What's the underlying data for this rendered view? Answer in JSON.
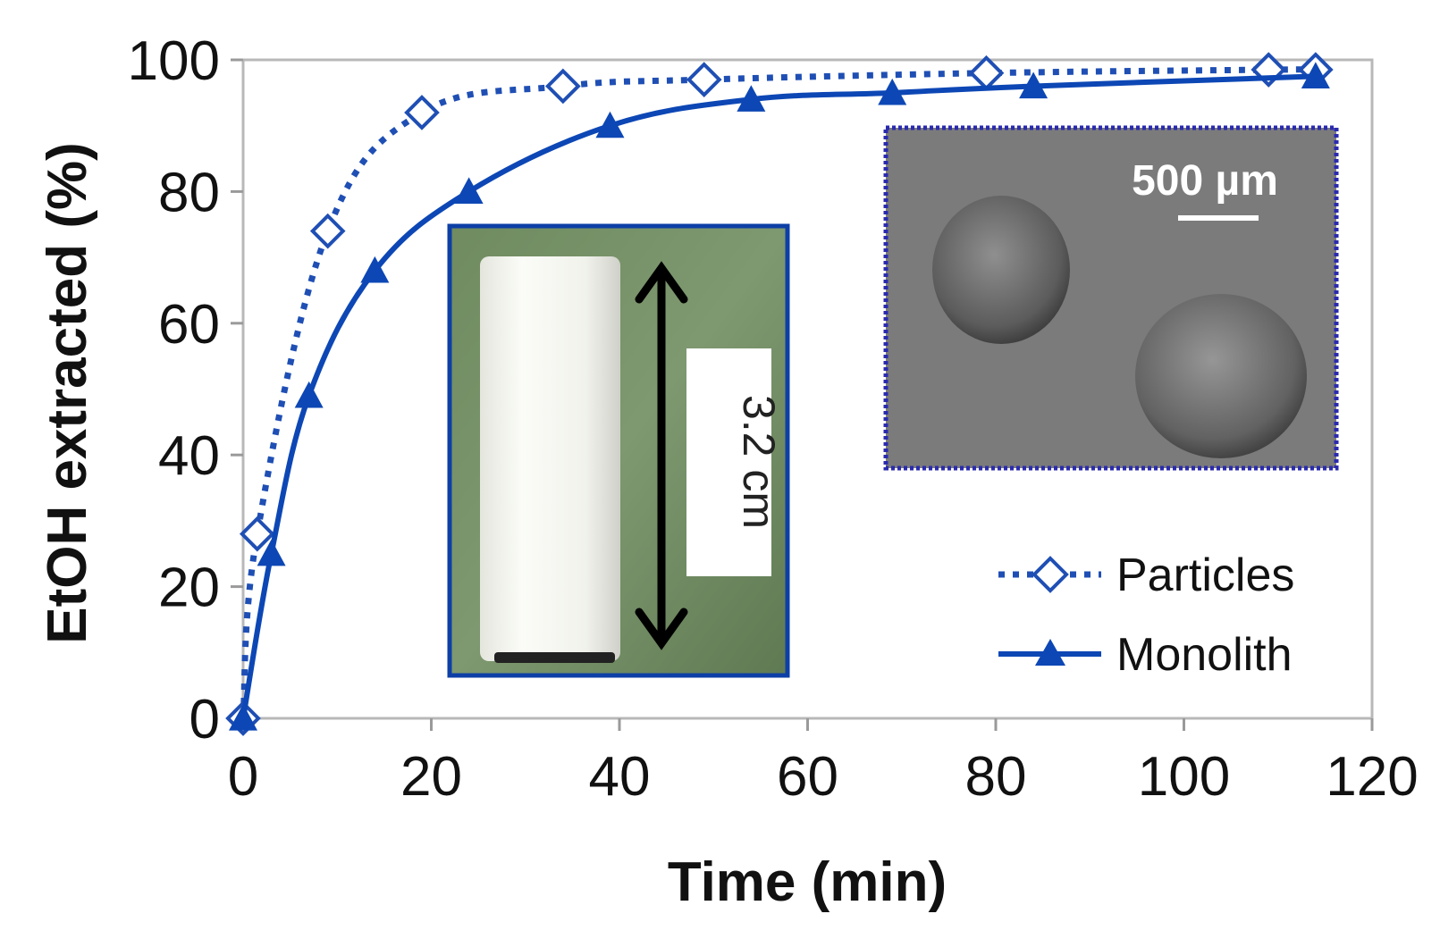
{
  "chart_data": {
    "type": "line",
    "xlabel": "Time (min)",
    "ylabel": "EtOH extracted (%)",
    "xlim": [
      0,
      120
    ],
    "ylim": [
      0,
      100
    ],
    "xticks": [
      0,
      20,
      40,
      60,
      80,
      100,
      120
    ],
    "yticks": [
      0,
      20,
      40,
      60,
      80,
      100
    ],
    "grid": false,
    "legend_position": "bottom-right",
    "series": [
      {
        "name": "Particles",
        "marker": "open-diamond",
        "line_style": "dotted",
        "color": "#1f4fb4",
        "x": [
          0,
          1.5,
          9,
          19,
          34,
          49,
          79,
          109,
          114
        ],
        "y": [
          0,
          28,
          74,
          92,
          96,
          97,
          98,
          98.5,
          98.5
        ]
      },
      {
        "name": "Monolith",
        "marker": "filled-triangle",
        "line_style": "solid",
        "color": "#0d47b5",
        "x": [
          0,
          3,
          7,
          14,
          24,
          39,
          54,
          69,
          84,
          114
        ],
        "y": [
          0,
          25,
          49,
          68,
          80,
          90,
          94,
          95,
          96,
          97.5
        ]
      }
    ],
    "insets": [
      {
        "label": "3.2 cm",
        "description_colors": {
          "background": "#6e8a5e",
          "border": "#0d3fa6"
        }
      },
      {
        "label": "500 µm",
        "description_colors": {
          "background": "#7d7d7d",
          "border": "#2a2ab0"
        }
      }
    ]
  }
}
